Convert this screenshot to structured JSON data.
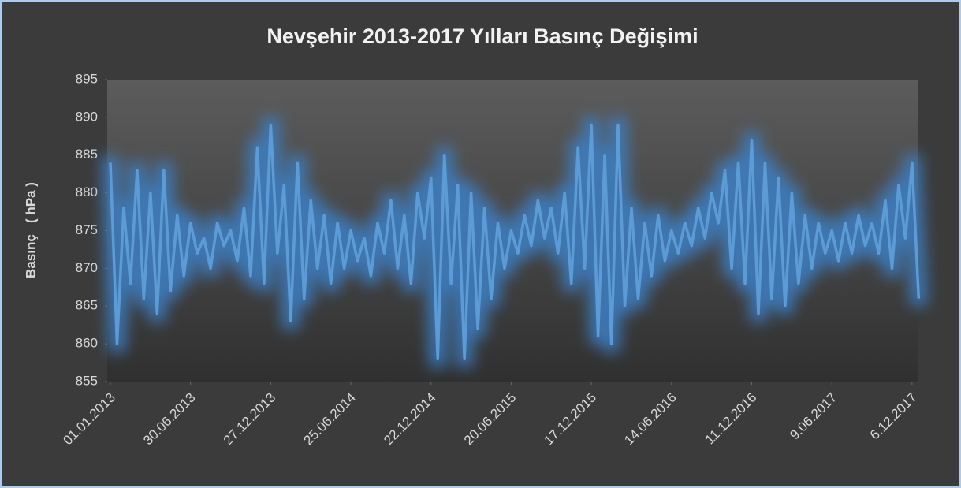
{
  "chart_data": {
    "type": "line",
    "title": "Nevşehir 2013-2017 Yılları Basınç Değişimi",
    "y_label": "Basınç   ( hPa )",
    "x": [
      "01.01.2013",
      "16.01.2013",
      "31.01.2013",
      "15.02.2013",
      "02.03.2013",
      "17.03.2013",
      "01.04.2013",
      "16.04.2013",
      "01.05.2013",
      "16.05.2013",
      "31.05.2013",
      "15.06.2013",
      "30.06.2013",
      "15.07.2013",
      "30.07.2013",
      "14.08.2013",
      "29.08.2013",
      "13.09.2013",
      "28.09.2013",
      "13.10.2013",
      "28.10.2013",
      "12.11.2013",
      "27.11.2013",
      "12.12.2013",
      "27.12.2013",
      "11.01.2014",
      "26.01.2014",
      "10.02.2014",
      "25.02.2014",
      "12.03.2014",
      "27.03.2014",
      "11.04.2014",
      "26.04.2014",
      "11.05.2014",
      "26.05.2014",
      "10.06.2014",
      "25.06.2014",
      "10.07.2014",
      "25.07.2014",
      "09.08.2014",
      "24.08.2014",
      "08.09.2014",
      "23.09.2014",
      "08.10.2014",
      "23.10.2014",
      "07.11.2014",
      "22.11.2014",
      "07.12.2014",
      "22.12.2014",
      "06.01.2015",
      "21.01.2015",
      "05.02.2015",
      "20.02.2015",
      "07.03.2015",
      "22.03.2015",
      "06.04.2015",
      "21.04.2015",
      "06.05.2015",
      "21.05.2015",
      "05.06.2015",
      "20.06.2015",
      "05.07.2015",
      "20.07.2015",
      "04.08.2015",
      "19.08.2015",
      "03.09.2015",
      "18.09.2015",
      "03.10.2015",
      "18.10.2015",
      "02.11.2015",
      "17.11.2015",
      "02.12.2015",
      "17.12.2015",
      "01.01.2016",
      "16.01.2016",
      "31.01.2016",
      "15.02.2016",
      "01.03.2016",
      "16.03.2016",
      "31.03.2016",
      "15.04.2016",
      "30.04.2016",
      "15.05.2016",
      "30.05.2016",
      "14.06.2016",
      "29.06.2016",
      "14.07.2016",
      "29.07.2016",
      "13.08.2016",
      "28.08.2016",
      "12.09.2016",
      "27.09.2016",
      "12.10.2016",
      "27.10.2016",
      "11.11.2016",
      "26.11.2016",
      "11.12.2016",
      "26.12.2016",
      "10.01.2017",
      "25.01.2017",
      "09.02.2017",
      "24.02.2017",
      "11.03.2017",
      "26.03.2017",
      "10.04.2017",
      "25.04.2017",
      "10.05.2017",
      "25.05.2017",
      "09.06.2017",
      "24.06.2017",
      "09.07.2017",
      "24.07.2017",
      "08.08.2017",
      "23.08.2017",
      "07.09.2017",
      "22.09.2017",
      "07.10.2017",
      "22.10.2017",
      "06.11.2017",
      "21.11.2017",
      "06.12.2017",
      "21.12.2017"
    ],
    "series": [
      {
        "color": "#5b9bd5",
        "values": [
          884,
          860,
          878,
          868,
          883,
          866,
          880,
          864,
          883,
          867,
          877,
          869,
          876,
          872,
          874,
          870,
          876,
          873,
          875,
          871,
          878,
          869,
          886,
          868,
          889,
          872,
          881,
          863,
          884,
          866,
          879,
          870,
          877,
          868,
          876,
          870,
          875,
          871,
          874,
          869,
          876,
          872,
          879,
          870,
          877,
          868,
          880,
          874,
          882,
          858,
          885,
          868,
          881,
          858,
          880,
          862,
          878,
          866,
          876,
          870,
          875,
          872,
          877,
          873,
          879,
          874,
          878,
          872,
          880,
          868,
          886,
          870,
          889,
          861,
          885,
          860,
          889,
          865,
          878,
          866,
          876,
          869,
          877,
          871,
          875,
          872,
          876,
          873,
          878,
          874,
          880,
          876,
          883,
          870,
          884,
          868,
          887,
          864,
          884,
          866,
          882,
          865,
          880,
          868,
          877,
          870,
          876,
          872,
          875,
          871,
          876,
          872,
          877,
          873,
          876,
          872,
          879,
          870,
          881,
          874,
          884,
          866
        ]
      }
    ],
    "xlim": [
      "01.01.2013",
      "31.12.2017"
    ],
    "xticks": [
      "01.01.2013",
      "30.06.2013",
      "27.12.2013",
      "25.06.2014",
      "22.12.2014",
      "20.06.2015",
      "17.12.2015",
      "14.06.2016",
      "11.12.2016",
      "9.06.2017",
      "6.12.2017"
    ],
    "ylim": [
      855,
      895
    ],
    "yticks": [
      855,
      860,
      865,
      870,
      875,
      880,
      885,
      890,
      895
    ]
  }
}
